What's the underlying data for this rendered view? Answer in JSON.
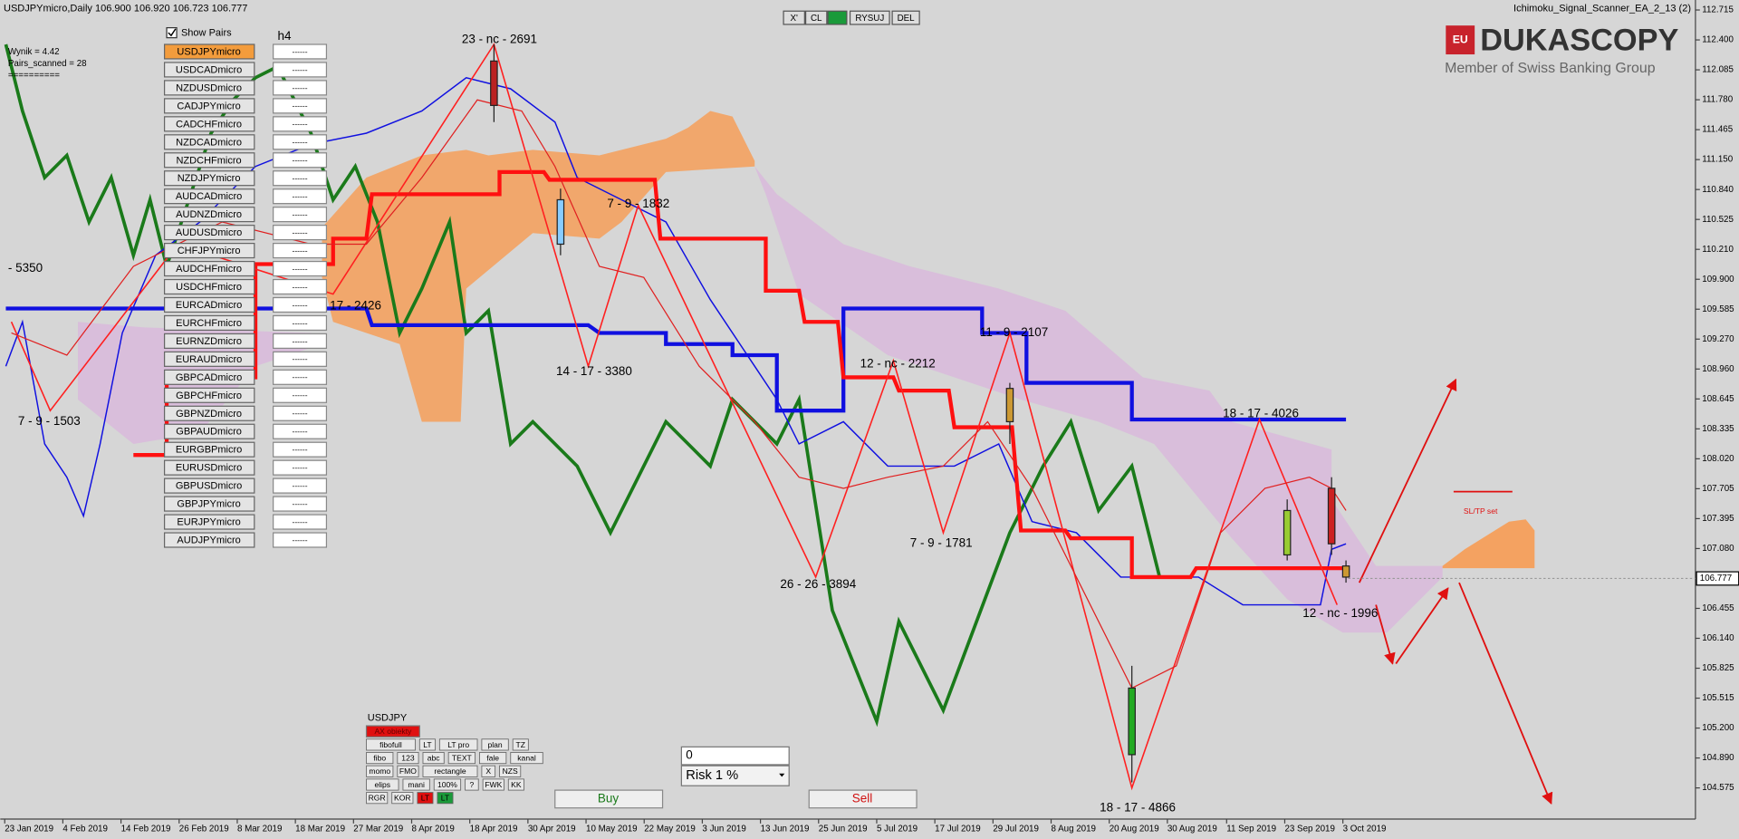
{
  "header": {
    "symbol_info": "USDJPYmicro,Daily  106.900 106.920 106.723 106.777",
    "ea_name": "Ichimoku_Signal_Scanner_EA_2_13 (2)"
  },
  "stats": [
    "Wynik = 4.42",
    "Pairs_scanned = 28",
    "=========="
  ],
  "toolbar": [
    "X'",
    "CL",
    "RYSUJ",
    "DEL"
  ],
  "logo": {
    "badge": "EU",
    "name": "DUKASCOPY",
    "tagline": "Member of Swiss Banking Group"
  },
  "scanner": {
    "checkbox_label": "Show Pairs",
    "timeframe": "h4",
    "placeholder": "------",
    "pairs": [
      "USDJPYmicro",
      "USDCADmicro",
      "NZDUSDmicro",
      "CADJPYmicro",
      "CADCHFmicro",
      "NZDCADmicro",
      "NZDCHFmicro",
      "NZDJPYmicro",
      "AUDCADmicro",
      "AUDNZDmicro",
      "AUDUSDmicro",
      "CHFJPYmicro",
      "AUDCHFmicro",
      "USDCHFmicro",
      "EURCADmicro",
      "EURCHFmicro",
      "EURNZDmicro",
      "EURAUDmicro",
      "GBPCADmicro",
      "GBPCHFmicro",
      "GBPNZDmicro",
      "GBPAUDmicro",
      "EURGBPmicro",
      "EURUSDmicro",
      "GBPUSDmicro",
      "GBPJPYmicro",
      "EURJPYmicro",
      "AUDJPYmicro"
    ]
  },
  "price_axis": [
    "112.715",
    "112.400",
    "112.085",
    "111.780",
    "111.465",
    "111.150",
    "110.840",
    "110.525",
    "110.210",
    "109.900",
    "109.585",
    "109.270",
    "108.960",
    "108.645",
    "108.335",
    "108.020",
    "107.705",
    "107.395",
    "107.080",
    "106.455",
    "106.140",
    "105.825",
    "105.515",
    "105.200",
    "104.890",
    "104.575"
  ],
  "current_price": "106.777",
  "date_axis": [
    "23 Jan 2019",
    "4 Feb 2019",
    "14 Feb 2019",
    "26 Feb 2019",
    "8 Mar 2019",
    "18 Mar 2019",
    "27 Mar 2019",
    "8 Apr 2019",
    "18 Apr 2019",
    "30 Apr 2019",
    "10 May 2019",
    "22 May 2019",
    "3 Jun 2019",
    "13 Jun 2019",
    "25 Jun 2019",
    "5 Jul 2019",
    "17 Jul 2019",
    "29 Jul 2019",
    "8 Aug 2019",
    "20 Aug 2019",
    "30 Aug 2019",
    "11 Sep 2019",
    "23 Sep 2019",
    "3 Oct 2019"
  ],
  "annotations": [
    "23 - nc - 2691",
    "- 5350",
    "7 - 9 - 1503",
    "17 - 2426",
    "14 - 17 - 3380",
    "7 - 9 - 1832",
    "12 - nc - 2212",
    "11 - 9 - 2107",
    "26 - 26 - 3894",
    "7 - 9 - 1781",
    "18 - 17 - 4026",
    "12 - nc - 1996",
    "18 - 17 - 4866",
    "SL/TP set"
  ],
  "tool_panel": {
    "symbol": "USDJPY",
    "top_button": "AX obiekty",
    "rows": [
      [
        "fibofull",
        "LT",
        "LT pro",
        "plan",
        "TZ"
      ],
      [
        "fibo",
        "123",
        "abc",
        "TEXT",
        "fale",
        "kanal"
      ],
      [
        "momo",
        "FMO",
        "rectangle",
        "X",
        "NZS"
      ],
      [
        "elips",
        "mani",
        "100%",
        "?",
        "FWK",
        "KK"
      ],
      [
        "RGR",
        "KOR",
        "LT",
        "LT"
      ]
    ]
  },
  "order": {
    "lots": "0",
    "risk": "Risk  1 %",
    "buy": "Buy",
    "sell": "Sell"
  }
}
